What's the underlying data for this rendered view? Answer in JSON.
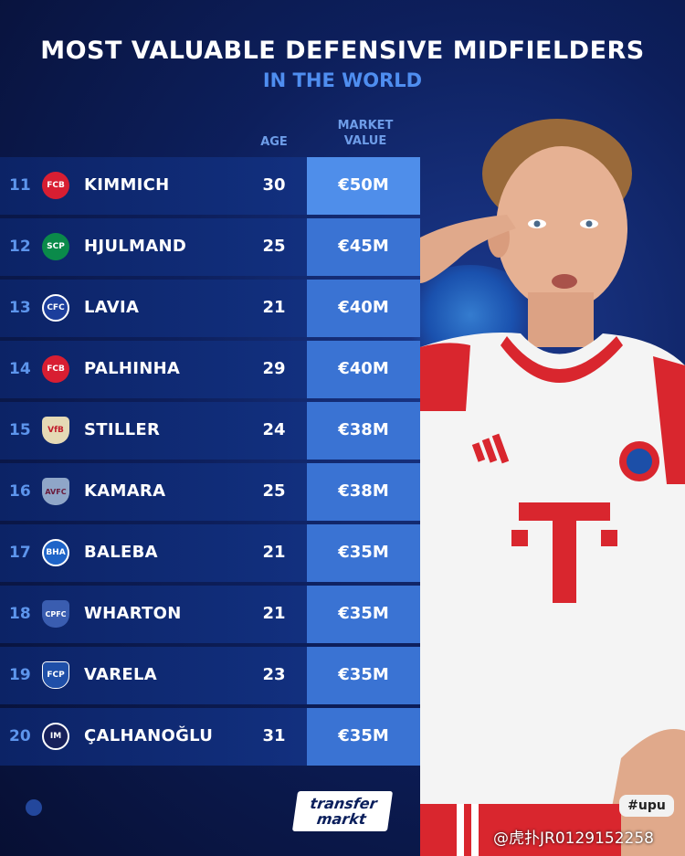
{
  "header": {
    "title": "MOST VALUABLE DEFENSIVE MIDFIELDERS",
    "subtitle": "IN THE WORLD"
  },
  "columns": {
    "age": "AGE",
    "market_value_line1": "MARKET",
    "market_value_line2": "VALUE"
  },
  "rows": [
    {
      "rank": "11",
      "name": "KIMMICH",
      "age": "30",
      "value": "€50M",
      "badge": "FCB",
      "badge_color": "#d81e32",
      "badge_shape": "round"
    },
    {
      "rank": "12",
      "name": "HJULMAND",
      "age": "25",
      "value": "€45M",
      "badge": "SCP",
      "badge_color": "#0a8a4a",
      "badge_shape": "round"
    },
    {
      "rank": "13",
      "name": "LAVIA",
      "age": "21",
      "value": "€40M",
      "badge": "CFC",
      "badge_color": "#1c3e9c",
      "badge_shape": "round"
    },
    {
      "rank": "14",
      "name": "PALHINHA",
      "age": "29",
      "value": "€40M",
      "badge": "FCB",
      "badge_color": "#d81e32",
      "badge_shape": "round"
    },
    {
      "rank": "15",
      "name": "STILLER",
      "age": "24",
      "value": "€38M",
      "badge": "VfB",
      "badge_color": "#e5d9b5",
      "badge_shape": "shield"
    },
    {
      "rank": "16",
      "name": "KAMARA",
      "age": "25",
      "value": "€38M",
      "badge": "AVFC",
      "badge_color": "#8fa6c8",
      "badge_shape": "shield"
    },
    {
      "rank": "17",
      "name": "BALEBA",
      "age": "21",
      "value": "€35M",
      "badge": "BHA",
      "badge_color": "#1e64c8",
      "badge_shape": "round"
    },
    {
      "rank": "18",
      "name": "WHARTON",
      "age": "21",
      "value": "€35M",
      "badge": "CPFC",
      "badge_color": "#3a5db0",
      "badge_shape": "shield"
    },
    {
      "rank": "19",
      "name": "VARELA",
      "age": "23",
      "value": "€35M",
      "badge": "FCP",
      "badge_color": "#1f4fa8",
      "badge_shape": "shield"
    },
    {
      "rank": "20",
      "name": "ÇALHANOĞLU",
      "age": "31",
      "value": "€35M",
      "badge": "IM",
      "badge_color": "#16205a",
      "badge_shape": "round"
    }
  ],
  "footer": {
    "logo_line1": "transfer",
    "logo_line2": "markt",
    "hupu": "#upu",
    "watermark": "@虎扑JR0129152258"
  },
  "photo": {
    "description_icon": "player-photo",
    "shirt_colors": [
      "#ffffff",
      "#d9262e"
    ]
  }
}
